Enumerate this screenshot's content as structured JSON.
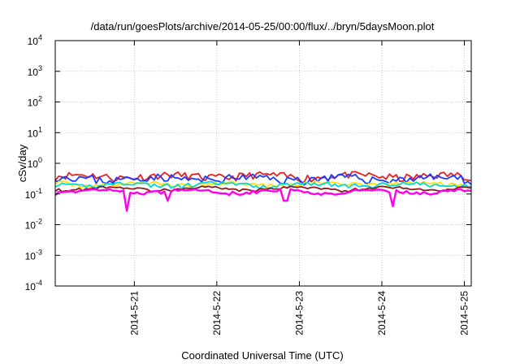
{
  "chart_data": {
    "type": "line",
    "title": "/data/run/goesPlots/archive/2014-05-25/00:00/flux/../bryn/5daysMoon.plot",
    "xlabel": "Coordinated Universal Time (UTC)",
    "ylabel": "cSv/day",
    "yscale": "log",
    "ylim": [
      0.0001,
      10000
    ],
    "xlim": [
      "2014-05-20 01:00",
      "2014-05-25 02:00"
    ],
    "grid": true,
    "y_ticks": [
      {
        "base": "10",
        "exp": "-4"
      },
      {
        "base": "10",
        "exp": "-3"
      },
      {
        "base": "10",
        "exp": "-2"
      },
      {
        "base": "10",
        "exp": "-1"
      },
      {
        "base": "10",
        "exp": "0"
      },
      {
        "base": "10",
        "exp": "1"
      },
      {
        "base": "10",
        "exp": "2"
      },
      {
        "base": "10",
        "exp": "3"
      },
      {
        "base": "10",
        "exp": "4"
      }
    ],
    "x_ticks": [
      "2014-5-21",
      "2014-5-22",
      "2014-5-23",
      "2014-5-24",
      "2014-5-25"
    ],
    "x_tick_dates": [
      "2014-05-21 00:00",
      "2014-05-22 00:00",
      "2014-05-23 00:00",
      "2014-05-24 00:00",
      "2014-05-25 00:00"
    ],
    "series": [
      {
        "color": "#ee1c1c",
        "level": 0.38,
        "amp": 0.28,
        "seed": 11
      },
      {
        "color": "#1a3cff",
        "level": 0.32,
        "amp": 0.3,
        "seed": 23
      },
      {
        "color": "#ffe000",
        "level": 0.21,
        "amp": 0.16,
        "seed": 37
      },
      {
        "color": "#00d8e0",
        "level": 0.2,
        "amp": 0.17,
        "seed": 41
      },
      {
        "color": "#8b1a1a",
        "level": 0.15,
        "amp": 0.1,
        "seed": 53
      },
      {
        "color": "#ff00ee",
        "level": 0.12,
        "amp": 0.12,
        "seed": 67,
        "dips": [
          [
            "2014-05-20 21:30",
            0.028
          ],
          [
            "2014-05-22 20:00",
            0.06
          ],
          [
            "2014-05-24 03:00",
            0.04
          ],
          [
            "2014-05-21 10:00",
            0.06
          ]
        ]
      }
    ]
  }
}
